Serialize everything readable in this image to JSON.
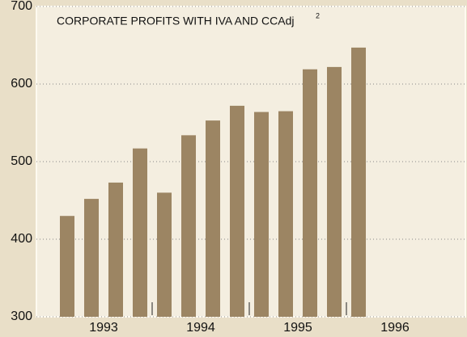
{
  "chart_data": {
    "type": "bar",
    "title": "CORPORATE PROFITS WITH IVA AND CCAdj",
    "title_footnote": "2",
    "categories": [
      null,
      null,
      null,
      null,
      null,
      null,
      null,
      null,
      null,
      null,
      null,
      null,
      null
    ],
    "values": [
      430,
      452,
      473,
      517,
      460,
      534,
      553,
      572,
      564,
      565,
      619,
      622,
      647
    ],
    "x_group_labels": [
      "1993",
      "1994",
      "1995",
      "1996"
    ],
    "color": "#9c8563",
    "ylim": [
      300,
      700
    ],
    "yticks": [
      300,
      400,
      500,
      600,
      700
    ],
    "grid": true
  }
}
